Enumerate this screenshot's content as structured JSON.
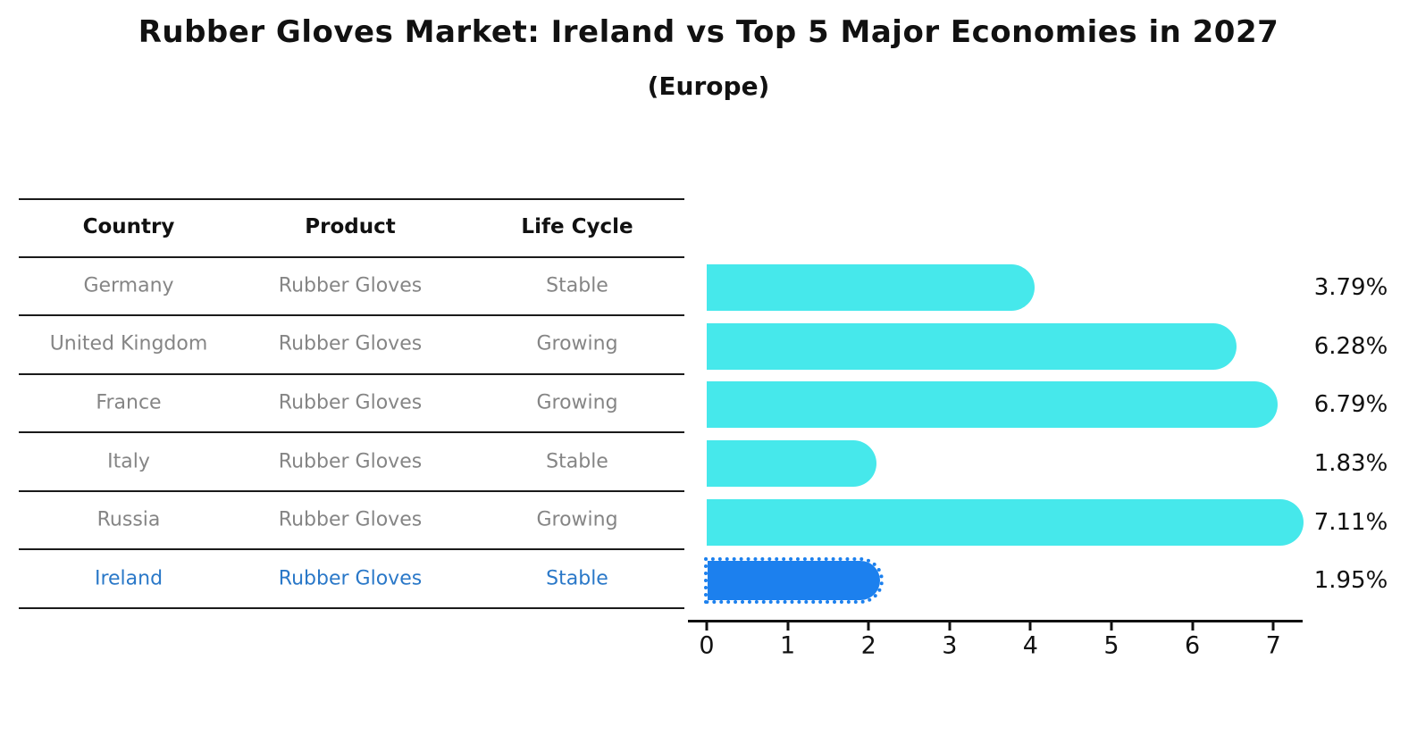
{
  "header": {
    "title": "Rubber Gloves Market: Ireland vs Top 5 Major Economies in 2027",
    "subtitle": "(Europe)"
  },
  "table": {
    "headers": [
      "Country",
      "Product",
      "Life Cycle"
    ],
    "rows": [
      {
        "country": "Germany",
        "product": "Rubber Gloves",
        "life_cycle": "Stable",
        "highlight": false
      },
      {
        "country": "United Kingdom",
        "product": "Rubber Gloves",
        "life_cycle": "Growing",
        "highlight": false
      },
      {
        "country": "France",
        "product": "Rubber Gloves",
        "life_cycle": "Growing",
        "highlight": false
      },
      {
        "country": "Italy",
        "product": "Rubber Gloves",
        "life_cycle": "Stable",
        "highlight": false
      },
      {
        "country": "Russia",
        "product": "Rubber Gloves",
        "life_cycle": "Growing",
        "highlight": false
      },
      {
        "country": "Ireland",
        "product": "Rubber Gloves",
        "life_cycle": "Stable",
        "highlight": true
      }
    ]
  },
  "chart_data": {
    "type": "bar",
    "orientation": "horizontal",
    "title": "Rubber Gloves Market: Ireland vs Top 5 Major Economies in 2027",
    "subtitle": "(Europe)",
    "categories": [
      "Germany",
      "United Kingdom",
      "France",
      "Italy",
      "Russia",
      "Ireland"
    ],
    "values": [
      3.79,
      6.28,
      6.79,
      1.83,
      7.11,
      1.95
    ],
    "value_labels": [
      "3.79%",
      "6.28%",
      "6.79%",
      "1.83%",
      "7.11%",
      "1.95%"
    ],
    "xticks": [
      0,
      1,
      2,
      3,
      4,
      5,
      6,
      7
    ],
    "xlim": [
      0,
      7.4
    ],
    "grid": false,
    "legend": "none",
    "bar_color": "#46E8EB",
    "highlight_color": "#1C80EE",
    "highlight_category": "Ireland",
    "text_color": "#111111",
    "muted_text_color": "#858585",
    "highlight_text_color": "#2A78C8"
  }
}
